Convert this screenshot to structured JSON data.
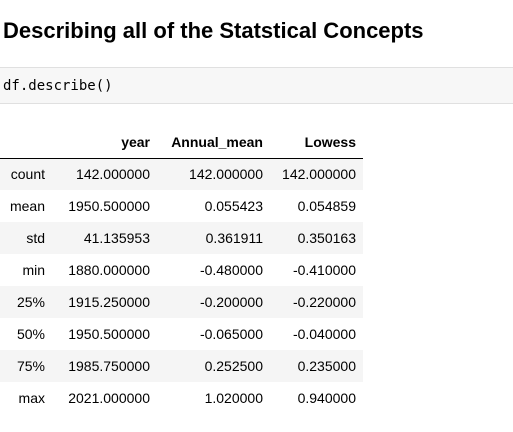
{
  "heading": "Describing all of the Statstical Concepts",
  "code": "df.describe()",
  "table": {
    "columns": [
      "",
      "year",
      "Annual_mean",
      "Lowess"
    ],
    "rows": [
      {
        "label": "count",
        "values": [
          "142.000000",
          "142.000000",
          "142.000000"
        ]
      },
      {
        "label": "mean",
        "values": [
          "1950.500000",
          "0.055423",
          "0.054859"
        ]
      },
      {
        "label": "std",
        "values": [
          "41.135953",
          "0.361911",
          "0.350163"
        ]
      },
      {
        "label": "min",
        "values": [
          "1880.000000",
          "-0.480000",
          "-0.410000"
        ]
      },
      {
        "label": "25%",
        "values": [
          "1915.250000",
          "-0.200000",
          "-0.220000"
        ]
      },
      {
        "label": "50%",
        "values": [
          "1950.500000",
          "-0.065000",
          "-0.040000"
        ]
      },
      {
        "label": "75%",
        "values": [
          "1985.750000",
          "0.252500",
          "0.235000"
        ]
      },
      {
        "label": "max",
        "values": [
          "2021.000000",
          "1.020000",
          "0.940000"
        ]
      }
    ]
  }
}
